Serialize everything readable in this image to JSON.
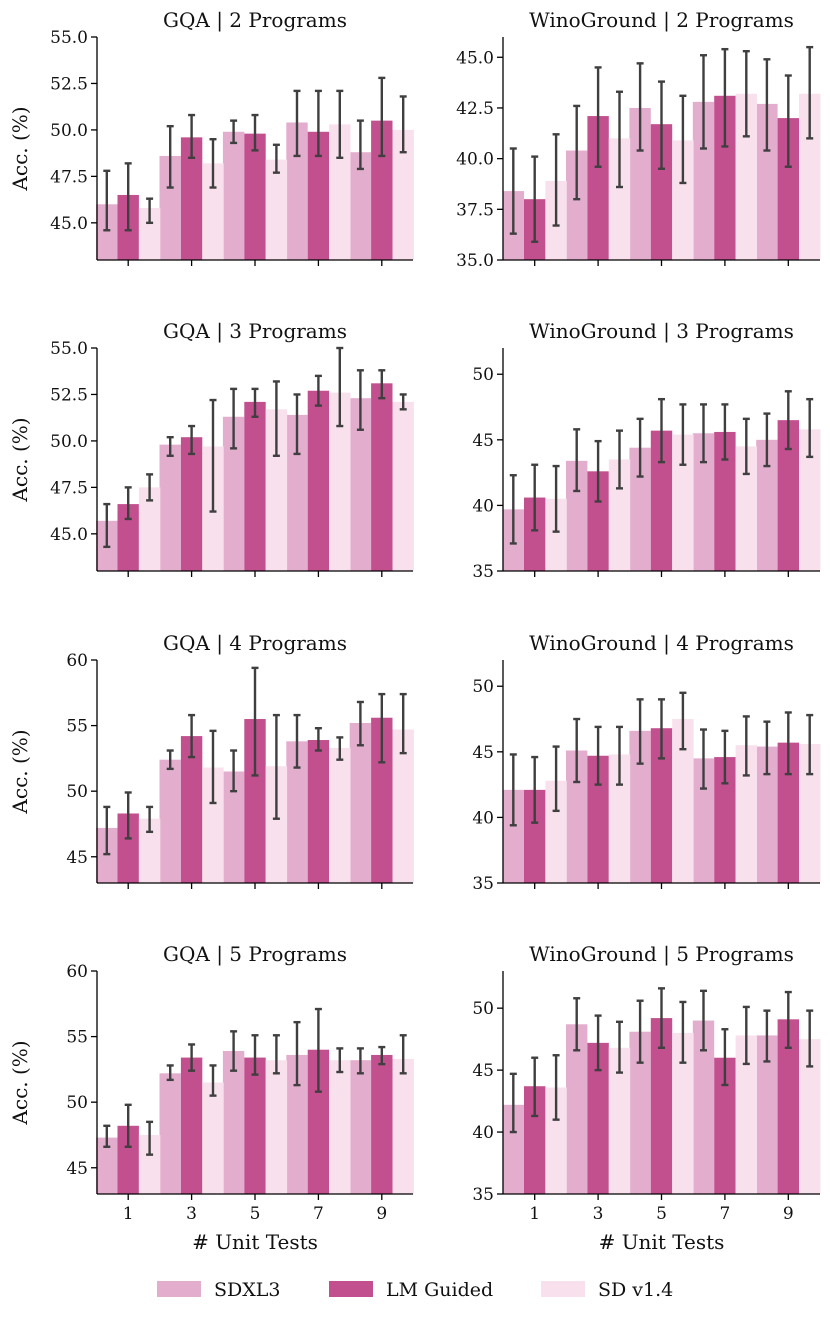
{
  "colors": {
    "SDXL3": "#e3aecd",
    "LM Guided": "#c2508f",
    "SD v1.4": "#f8e1ec",
    "error_bar": "#3f3f3f",
    "axis": "#000000"
  },
  "legend": {
    "placement": "bottom-center",
    "entries": [
      "SDXL3",
      "LM Guided",
      "SD v1.4"
    ]
  },
  "chart_data": [
    {
      "type": "bar",
      "title": "GQA | 2 Programs",
      "ylabel": "Acc. (%)",
      "xlabel": "# Unit Tests",
      "categories": [
        "1",
        "3",
        "5",
        "7",
        "9"
      ],
      "ylim": [
        43,
        55
      ],
      "yticks": [
        45.0,
        47.5,
        50.0,
        52.5,
        55.0
      ],
      "ytick_labels": [
        "45.0",
        "47.5",
        "50.0",
        "52.5",
        "55.0"
      ],
      "series": [
        {
          "name": "SDXL3",
          "values": [
            46.0,
            48.6,
            49.9,
            50.4,
            48.8
          ],
          "err_low": [
            44.6,
            46.9,
            49.3,
            48.6,
            47.9
          ],
          "err_high": [
            47.8,
            50.2,
            50.5,
            52.1,
            50.5
          ]
        },
        {
          "name": "LM Guided",
          "values": [
            46.5,
            49.6,
            49.8,
            49.9,
            50.5
          ],
          "err_low": [
            44.6,
            48.5,
            48.9,
            48.6,
            48.6
          ],
          "err_high": [
            48.2,
            50.8,
            50.8,
            52.1,
            52.8
          ]
        },
        {
          "name": "SD v1.4",
          "values": [
            45.8,
            48.2,
            48.4,
            50.3,
            50.0
          ],
          "err_low": [
            45.0,
            46.9,
            47.7,
            48.5,
            48.8
          ],
          "err_high": [
            46.3,
            49.5,
            49.2,
            52.1,
            51.8
          ]
        }
      ]
    },
    {
      "type": "bar",
      "title": "WinoGround | 2 Programs",
      "ylabel": "",
      "xlabel": "# Unit Tests",
      "categories": [
        "1",
        "3",
        "5",
        "7",
        "9"
      ],
      "ylim": [
        35,
        46
      ],
      "yticks": [
        35.0,
        37.5,
        40.0,
        42.5,
        45.0
      ],
      "ytick_labels": [
        "35.0",
        "37.5",
        "40.0",
        "42.5",
        "45.0"
      ],
      "series": [
        {
          "name": "SDXL3",
          "values": [
            38.4,
            40.4,
            42.5,
            42.8,
            42.7
          ],
          "err_low": [
            36.3,
            38.0,
            40.4,
            40.5,
            40.4
          ],
          "err_high": [
            40.5,
            42.6,
            44.7,
            45.1,
            44.9
          ]
        },
        {
          "name": "LM Guided",
          "values": [
            38.0,
            42.1,
            41.7,
            43.1,
            42.0
          ],
          "err_low": [
            35.9,
            39.6,
            39.5,
            40.6,
            39.6
          ],
          "err_high": [
            40.1,
            44.5,
            43.8,
            45.4,
            44.1
          ]
        },
        {
          "name": "SD v1.4",
          "values": [
            38.9,
            41.0,
            40.9,
            43.2,
            43.2
          ],
          "err_low": [
            36.7,
            38.6,
            38.8,
            41.1,
            41.0
          ],
          "err_high": [
            41.2,
            43.3,
            43.1,
            45.3,
            45.5
          ]
        }
      ]
    },
    {
      "type": "bar",
      "title": "GQA | 3 Programs",
      "ylabel": "Acc. (%)",
      "xlabel": "# Unit Tests",
      "categories": [
        "1",
        "3",
        "5",
        "7",
        "9"
      ],
      "ylim": [
        43,
        55
      ],
      "yticks": [
        45.0,
        47.5,
        50.0,
        52.5,
        55.0
      ],
      "ytick_labels": [
        "45.0",
        "47.5",
        "50.0",
        "52.5",
        "55.0"
      ],
      "series": [
        {
          "name": "SDXL3",
          "values": [
            45.7,
            49.8,
            51.3,
            51.4,
            52.3
          ],
          "err_low": [
            44.3,
            49.2,
            49.6,
            49.3,
            50.6
          ],
          "err_high": [
            46.6,
            50.2,
            52.8,
            52.5,
            53.8
          ]
        },
        {
          "name": "LM Guided",
          "values": [
            46.6,
            50.2,
            52.1,
            52.7,
            53.1
          ],
          "err_low": [
            45.8,
            49.3,
            51.3,
            51.9,
            52.3
          ],
          "err_high": [
            47.5,
            50.8,
            52.8,
            53.5,
            53.8
          ]
        },
        {
          "name": "SD v1.4",
          "values": [
            47.5,
            49.7,
            51.7,
            52.6,
            52.1
          ],
          "err_low": [
            46.8,
            46.2,
            49.2,
            50.8,
            51.7
          ],
          "err_high": [
            48.2,
            52.2,
            53.2,
            55.0,
            52.5
          ]
        }
      ]
    },
    {
      "type": "bar",
      "title": "WinoGround | 3 Programs",
      "ylabel": "",
      "xlabel": "# Unit Tests",
      "categories": [
        "1",
        "3",
        "5",
        "7",
        "9"
      ],
      "ylim": [
        35,
        52
      ],
      "yticks": [
        35,
        40,
        45,
        50
      ],
      "ytick_labels": [
        "35",
        "40",
        "45",
        "50"
      ],
      "series": [
        {
          "name": "SDXL3",
          "values": [
            39.7,
            43.4,
            44.4,
            45.5,
            45.0
          ],
          "err_low": [
            37.1,
            41.1,
            42.2,
            43.3,
            43.0
          ],
          "err_high": [
            42.3,
            45.8,
            46.6,
            47.7,
            47.0
          ]
        },
        {
          "name": "LM Guided",
          "values": [
            40.6,
            42.6,
            45.7,
            45.6,
            46.5
          ],
          "err_low": [
            38.1,
            40.3,
            43.3,
            43.5,
            44.3
          ],
          "err_high": [
            43.1,
            44.9,
            48.1,
            47.7,
            48.7
          ]
        },
        {
          "name": "SD v1.4",
          "values": [
            40.5,
            43.5,
            45.4,
            44.5,
            45.8
          ],
          "err_low": [
            38.0,
            41.3,
            43.1,
            42.4,
            43.7
          ],
          "err_high": [
            43.0,
            45.7,
            47.7,
            46.6,
            48.1
          ]
        }
      ]
    },
    {
      "type": "bar",
      "title": "GQA | 4 Programs",
      "ylabel": "Acc. (%)",
      "xlabel": "# Unit Tests",
      "categories": [
        "1",
        "3",
        "5",
        "7",
        "9"
      ],
      "ylim": [
        43,
        60
      ],
      "yticks": [
        45,
        50,
        55,
        60
      ],
      "ytick_labels": [
        "45",
        "50",
        "55",
        "60"
      ],
      "series": [
        {
          "name": "SDXL3",
          "values": [
            47.2,
            52.4,
            51.5,
            53.8,
            55.2
          ],
          "err_low": [
            45.2,
            51.7,
            50.0,
            51.8,
            53.5
          ],
          "err_high": [
            48.8,
            53.1,
            53.1,
            55.8,
            56.8
          ]
        },
        {
          "name": "LM Guided",
          "values": [
            48.3,
            54.2,
            55.5,
            53.9,
            55.6
          ],
          "err_low": [
            46.4,
            52.6,
            51.2,
            53.1,
            52.2
          ],
          "err_high": [
            49.9,
            55.8,
            59.4,
            54.8,
            57.4
          ]
        },
        {
          "name": "SD v1.4",
          "values": [
            47.9,
            51.8,
            51.9,
            53.3,
            54.7
          ],
          "err_low": [
            46.9,
            49.1,
            47.9,
            52.4,
            52.9
          ],
          "err_high": [
            48.8,
            54.6,
            55.8,
            54.1,
            57.4
          ]
        }
      ]
    },
    {
      "type": "bar",
      "title": "WinoGround | 4 Programs",
      "ylabel": "",
      "xlabel": "# Unit Tests",
      "categories": [
        "1",
        "3",
        "5",
        "7",
        "9"
      ],
      "ylim": [
        35,
        52
      ],
      "yticks": [
        35,
        40,
        45,
        50
      ],
      "ytick_labels": [
        "35",
        "40",
        "45",
        "50"
      ],
      "series": [
        {
          "name": "SDXL3",
          "values": [
            42.1,
            45.1,
            46.6,
            44.5,
            45.4
          ],
          "err_low": [
            39.4,
            42.7,
            44.1,
            42.2,
            43.3
          ],
          "err_high": [
            44.8,
            47.5,
            49.0,
            46.7,
            47.3
          ]
        },
        {
          "name": "LM Guided",
          "values": [
            42.1,
            44.7,
            46.8,
            44.6,
            45.7
          ],
          "err_low": [
            39.6,
            42.5,
            44.5,
            42.6,
            43.3
          ],
          "err_high": [
            44.6,
            46.9,
            49.0,
            46.6,
            48.0
          ]
        },
        {
          "name": "SD v1.4",
          "values": [
            42.8,
            44.8,
            47.5,
            45.5,
            45.6
          ],
          "err_low": [
            40.5,
            42.5,
            45.2,
            43.2,
            43.3
          ],
          "err_high": [
            45.4,
            46.9,
            49.5,
            47.7,
            47.8
          ]
        }
      ]
    },
    {
      "type": "bar",
      "title": "GQA | 5 Programs",
      "ylabel": "Acc. (%)",
      "xlabel": "# Unit Tests",
      "categories": [
        "1",
        "3",
        "5",
        "7",
        "9"
      ],
      "ylim": [
        43,
        60
      ],
      "yticks": [
        45,
        50,
        55,
        60
      ],
      "ytick_labels": [
        "45",
        "50",
        "55",
        "60"
      ],
      "series": [
        {
          "name": "SDXL3",
          "values": [
            47.3,
            52.2,
            53.9,
            53.6,
            53.2
          ],
          "err_low": [
            46.6,
            51.7,
            52.4,
            51.3,
            52.2
          ],
          "err_high": [
            48.2,
            52.8,
            55.4,
            56.1,
            54.1
          ]
        },
        {
          "name": "LM Guided",
          "values": [
            48.2,
            53.4,
            53.4,
            54.0,
            53.6
          ],
          "err_low": [
            46.6,
            52.4,
            52.1,
            50.8,
            52.9
          ],
          "err_high": [
            49.8,
            54.4,
            55.1,
            57.1,
            54.2
          ]
        },
        {
          "name": "SD v1.4",
          "values": [
            47.5,
            51.5,
            53.2,
            53.2,
            53.3
          ],
          "err_low": [
            46.0,
            50.5,
            52.2,
            52.3,
            52.2
          ],
          "err_high": [
            48.5,
            52.8,
            55.1,
            54.1,
            55.1
          ]
        }
      ]
    },
    {
      "type": "bar",
      "title": "WinoGround | 5 Programs",
      "ylabel": "",
      "xlabel": "# Unit Tests",
      "categories": [
        "1",
        "3",
        "5",
        "7",
        "9"
      ],
      "ylim": [
        35,
        53
      ],
      "yticks": [
        35,
        40,
        45,
        50
      ],
      "ytick_labels": [
        "35",
        "40",
        "45",
        "50"
      ],
      "series": [
        {
          "name": "SDXL3",
          "values": [
            42.2,
            48.7,
            48.1,
            49.0,
            47.8
          ],
          "err_low": [
            40.0,
            46.6,
            45.6,
            46.6,
            45.7
          ],
          "err_high": [
            44.7,
            50.8,
            50.6,
            51.4,
            49.8
          ]
        },
        {
          "name": "LM Guided",
          "values": [
            43.7,
            47.2,
            49.2,
            46.0,
            49.1
          ],
          "err_low": [
            41.3,
            45.0,
            46.8,
            43.8,
            46.8
          ],
          "err_high": [
            46.0,
            49.4,
            51.6,
            48.3,
            51.3
          ]
        },
        {
          "name": "SD v1.4",
          "values": [
            43.6,
            46.8,
            48.0,
            47.8,
            47.5
          ],
          "err_low": [
            41.0,
            44.8,
            45.6,
            45.5,
            45.3
          ],
          "err_high": [
            46.2,
            48.9,
            50.5,
            50.1,
            49.8
          ]
        }
      ]
    }
  ]
}
